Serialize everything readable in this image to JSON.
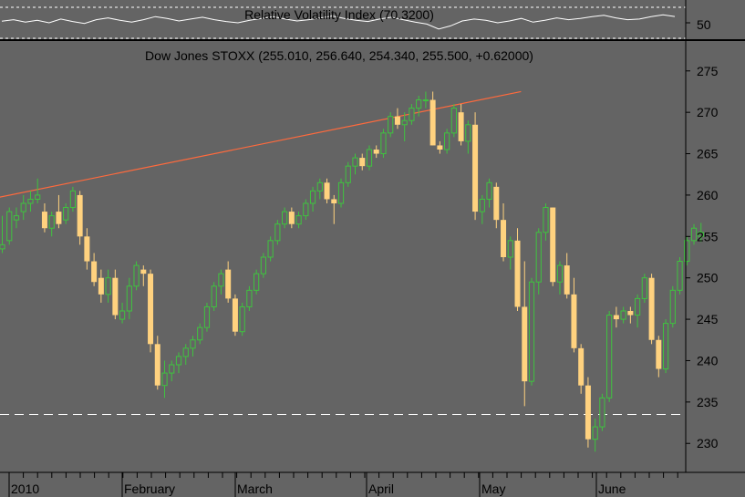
{
  "colors": {
    "background": "#646464",
    "up_candle": "#3fc43f",
    "down_candle": "#ffd27f",
    "trend_line": "#ff6a3d",
    "grid_line": "#ffffff",
    "text": "#000000"
  },
  "chart_data": [
    {
      "type": "line",
      "title": "Relative Volatility Index (70.3200)",
      "ylim": [
        0,
        100
      ],
      "y_ticks": [
        "50"
      ],
      "values": [
        55,
        60,
        52,
        58,
        50,
        62,
        54,
        48,
        60,
        66,
        58,
        52,
        60,
        70,
        64,
        56,
        62,
        68,
        60,
        54,
        50,
        58,
        64,
        70,
        62,
        56,
        60,
        66,
        72,
        64,
        58,
        54,
        62,
        68,
        60,
        52,
        46,
        30,
        40,
        56,
        62,
        58,
        50,
        56,
        64,
        52,
        58,
        66,
        60,
        64,
        70,
        74,
        66,
        60,
        62,
        70,
        76,
        70.32
      ]
    },
    {
      "type": "candlestick",
      "title": "Dow Jones STOXX (255.010, 256.640, 254.340, 255.500, +0.62000)",
      "ylim": [
        226.5,
        278.5
      ],
      "y_ticks": [
        "230",
        "235",
        "240",
        "245",
        "250",
        "255",
        "260",
        "265",
        "270",
        "275"
      ],
      "x_labels": [
        "2010",
        "February",
        "March",
        "April",
        "May",
        "June"
      ],
      "reference_line": 233.5,
      "trend_line": [
        [
          -3,
          259.3
        ],
        [
          73.5,
          272.5
        ]
      ],
      "candles": [
        [
          253.5,
          257.5,
          253,
          254
        ],
        [
          254.5,
          258.5,
          254,
          258
        ],
        [
          257,
          258.5,
          256,
          257.5
        ],
        [
          258,
          260,
          257,
          259
        ],
        [
          259,
          260.5,
          258,
          259.5
        ],
        [
          259.5,
          262,
          259,
          260
        ],
        [
          258,
          259,
          255.5,
          256
        ],
        [
          256,
          258,
          255,
          257.5
        ],
        [
          258,
          260,
          256,
          256.5
        ],
        [
          257,
          259,
          256.5,
          258.5
        ],
        [
          258.5,
          261,
          258,
          260.5
        ],
        [
          260,
          260.5,
          254,
          255
        ],
        [
          255,
          256,
          251,
          252
        ],
        [
          252,
          253,
          249,
          249.5
        ],
        [
          250,
          251,
          247,
          248
        ],
        [
          248,
          251,
          247,
          250
        ],
        [
          250,
          251,
          245,
          245.5
        ],
        [
          245,
          247,
          244.5,
          246
        ],
        [
          246,
          250,
          245,
          249
        ],
        [
          249,
          252,
          248.5,
          251.5
        ],
        [
          251,
          251.5,
          249,
          250.5
        ],
        [
          250.5,
          251,
          241,
          242
        ],
        [
          242,
          243,
          236.5,
          237
        ],
        [
          237,
          240,
          235.5,
          238.5
        ],
        [
          238.5,
          240,
          237.5,
          239.5
        ],
        [
          239.5,
          241,
          238.5,
          240.5
        ],
        [
          240.5,
          242,
          239.5,
          241.5
        ],
        [
          241.5,
          243,
          240.5,
          242.5
        ],
        [
          242.5,
          244.5,
          242,
          244
        ],
        [
          244,
          247,
          243.5,
          246.5
        ],
        [
          246.5,
          249.5,
          246,
          249
        ],
        [
          249,
          251,
          248,
          250.5
        ],
        [
          251,
          252,
          247,
          247.5
        ],
        [
          247.5,
          248,
          243,
          243.5
        ],
        [
          243.5,
          247,
          243,
          246.5
        ],
        [
          246.5,
          249,
          246,
          248.5
        ],
        [
          248.5,
          251,
          248,
          250.5
        ],
        [
          250.5,
          253,
          250,
          252.5
        ],
        [
          252.5,
          255,
          252,
          254.5
        ],
        [
          254.5,
          257,
          254,
          256.5
        ],
        [
          256.5,
          258.5,
          256,
          258
        ],
        [
          258,
          258.5,
          256,
          256.5
        ],
        [
          256.5,
          258,
          256,
          257.5
        ],
        [
          257.5,
          259.5,
          257,
          259
        ],
        [
          259,
          261,
          258,
          260.5
        ],
        [
          260.5,
          262,
          259.5,
          261.5
        ],
        [
          261.5,
          262,
          259,
          259.5
        ],
        [
          259.5,
          260,
          256.5,
          259
        ],
        [
          259,
          262,
          258.5,
          261.5
        ],
        [
          261.5,
          264,
          261,
          263.5
        ],
        [
          263.5,
          265,
          262.5,
          264.5
        ],
        [
          264.5,
          265,
          263,
          263.5
        ],
        [
          263.5,
          266,
          263,
          265.5
        ],
        [
          265.5,
          266,
          264.5,
          265
        ],
        [
          265,
          268,
          264.5,
          267.5
        ],
        [
          267.5,
          270,
          267,
          269.5
        ],
        [
          269.5,
          270.5,
          268,
          268.5
        ],
        [
          268.5,
          270,
          266.5,
          269
        ],
        [
          269,
          271,
          268.5,
          270.5
        ],
        [
          270.5,
          272,
          269.5,
          271.5
        ],
        [
          271.5,
          272.5,
          270.5,
          271.5
        ],
        [
          271.5,
          272.5,
          266,
          266
        ],
        [
          266,
          266.5,
          265,
          265.5
        ],
        [
          265.5,
          268,
          265,
          267.5
        ],
        [
          267.5,
          271,
          267,
          270.5
        ],
        [
          270,
          271,
          266,
          266.5
        ],
        [
          266.5,
          269,
          265,
          268.5
        ],
        [
          268.5,
          270,
          257,
          258
        ],
        [
          258,
          260,
          256.5,
          259.5
        ],
        [
          259.5,
          262,
          258.5,
          261.5
        ],
        [
          261,
          261.5,
          256,
          257
        ],
        [
          257,
          259,
          252,
          252.5
        ],
        [
          252.5,
          255,
          251,
          254.5
        ],
        [
          254.5,
          256,
          246,
          246.5
        ],
        [
          246.5,
          252,
          234.5,
          237.5
        ],
        [
          237.5,
          250,
          237,
          249.5
        ],
        [
          249.5,
          256,
          248,
          255.5
        ],
        [
          255.5,
          259,
          254.5,
          258.5
        ],
        [
          258.5,
          258.5,
          249,
          249.5
        ],
        [
          249.5,
          252,
          248,
          251.5
        ],
        [
          251.5,
          253,
          247.5,
          248
        ],
        [
          248,
          250,
          241,
          241.5
        ],
        [
          241.5,
          242,
          236,
          237
        ],
        [
          237,
          238,
          229.5,
          230.5
        ],
        [
          230.5,
          233,
          229,
          232
        ],
        [
          232,
          236,
          231.5,
          235.5
        ],
        [
          235.5,
          246,
          235,
          245.5
        ],
        [
          245.5,
          246.5,
          244,
          245
        ],
        [
          245,
          246.5,
          244.5,
          246
        ],
        [
          246,
          246.5,
          244.5,
          245.5
        ],
        [
          245.5,
          248,
          244,
          247.5
        ],
        [
          247.5,
          250.5,
          247,
          250
        ],
        [
          250,
          250.5,
          242,
          242.5
        ],
        [
          242.5,
          243,
          238,
          239
        ],
        [
          239,
          245,
          238.5,
          244.5
        ],
        [
          244.5,
          249,
          244,
          248.5
        ],
        [
          248.5,
          252.5,
          248,
          252
        ],
        [
          252,
          255,
          251.5,
          254.5
        ],
        [
          254.5,
          256.5,
          254,
          256
        ],
        [
          255.01,
          256.64,
          254.34,
          255.5
        ]
      ]
    }
  ]
}
